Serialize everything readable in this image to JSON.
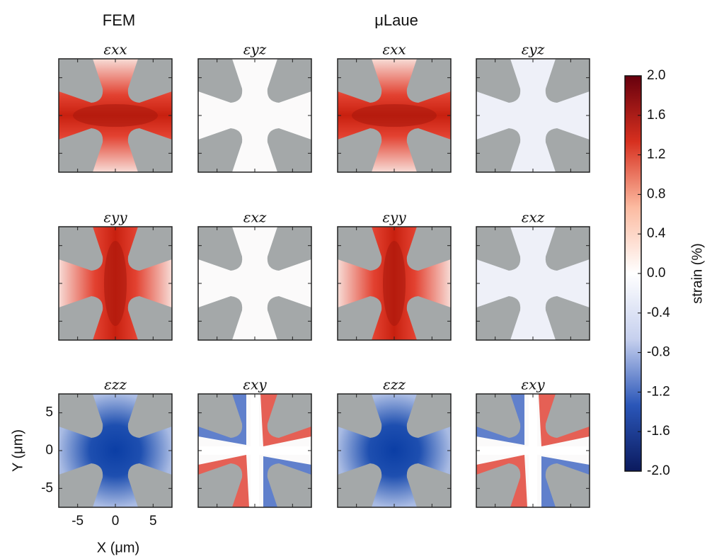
{
  "chart_data": {
    "type": "heatmap",
    "column_headers": [
      "FEM",
      "μLaue"
    ],
    "panels": [
      {
        "title": "εxx"
      },
      {
        "title": "εyz"
      },
      {
        "title": "εxx"
      },
      {
        "title": "εyz"
      },
      {
        "title": "εyy"
      },
      {
        "title": "εxz"
      },
      {
        "title": "εyy"
      },
      {
        "title": "εxz"
      },
      {
        "title": "εzz"
      },
      {
        "title": "εxy"
      },
      {
        "title": "εzz"
      },
      {
        "title": "εxy"
      }
    ],
    "x_label": "X (μm)",
    "y_label": "Y (μm)",
    "xlim": [
      -7.5,
      7.5
    ],
    "ylim": [
      -7.5,
      7.5
    ],
    "xticks": [
      -5,
      0,
      5
    ],
    "yticks": [
      -5,
      0,
      5
    ],
    "colorbar": {
      "label": "strain (%)",
      "lim": [
        -2,
        2
      ],
      "ticks": [
        {
          "value": 2,
          "label": "2.0"
        },
        {
          "value": 1.6,
          "label": "1.6"
        },
        {
          "value": 1.2,
          "label": "1.2"
        },
        {
          "value": 0.8,
          "label": "0.8"
        },
        {
          "value": 0.4,
          "label": "0.4"
        },
        {
          "value": 0,
          "label": "0.0"
        },
        {
          "value": -0.4,
          "label": "-0.4"
        },
        {
          "value": -0.8,
          "label": "-0.8"
        },
        {
          "value": -1.2,
          "label": "-1.2"
        },
        {
          "value": -1.6,
          "label": "-1.6"
        },
        {
          "value": -2,
          "label": "-2.0"
        }
      ],
      "colors": [
        "#67000d",
        "#d7301f",
        "#fcbba1",
        "#ffffff",
        "#c6d0ee",
        "#2a56b8",
        "#0b1a5e"
      ]
    },
    "mask_color": "#a4a8a9"
  }
}
